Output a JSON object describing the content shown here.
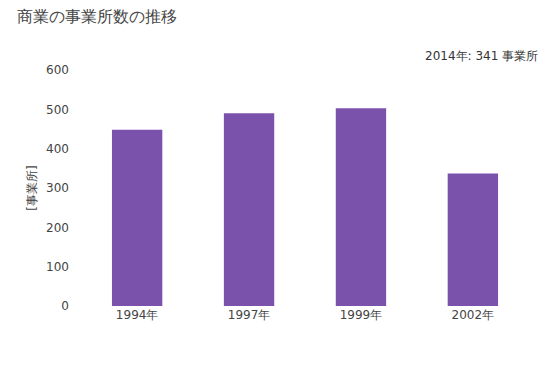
{
  "chart_data": {
    "type": "bar",
    "title": "商業の事業所数の推移",
    "ylabel": "[事業所]",
    "annotation": "2014年: 341 事業所",
    "categories": [
      "1994年",
      "1997年",
      "1999年",
      "2002年"
    ],
    "values": [
      448,
      490,
      503,
      337
    ],
    "color": "#7B52AB",
    "ylim": [
      0,
      600
    ],
    "yticks": [
      0,
      100,
      200,
      300,
      400,
      500,
      600
    ],
    "grid": false
  }
}
